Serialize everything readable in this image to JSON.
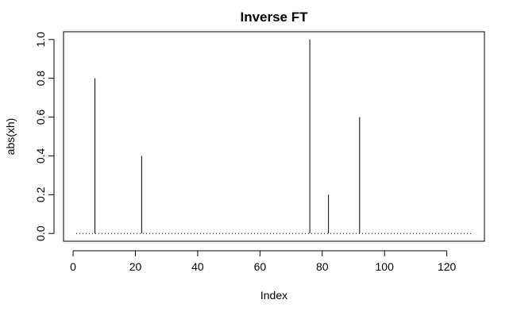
{
  "chart_data": {
    "type": "line",
    "plot_type": "h",
    "title": "Inverse FT",
    "xlabel": "Index",
    "ylabel": "abs(xh)",
    "xlim": [
      -3.08,
      132.08
    ],
    "ylim": [
      -0.04,
      1.04
    ],
    "x_ticks": [
      0,
      20,
      40,
      60,
      80,
      100,
      120
    ],
    "y_ticks": [
      0.0,
      0.2,
      0.4,
      0.6,
      0.8,
      1.0
    ],
    "x_tick_labels": [
      "0",
      "20",
      "40",
      "60",
      "80",
      "100",
      "120"
    ],
    "y_tick_labels": [
      "0.0",
      "0.2",
      "0.4",
      "0.6",
      "0.8",
      "1.0"
    ],
    "n": 128,
    "spikes": [
      {
        "x": 7,
        "y": 0.8
      },
      {
        "x": 22,
        "y": 0.4
      },
      {
        "x": 76,
        "y": 1.0
      },
      {
        "x": 82,
        "y": 0.2
      },
      {
        "x": 92,
        "y": 0.6
      }
    ],
    "baseline": {
      "y": 0.0,
      "x_start": 1,
      "x_end": 128,
      "style": "dotted"
    },
    "color": "#000000",
    "grid": false,
    "legend": false
  }
}
